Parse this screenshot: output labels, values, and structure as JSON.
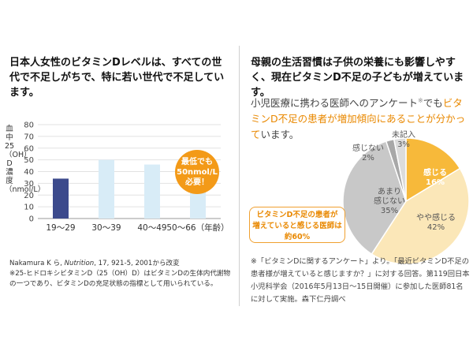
{
  "left": {
    "heading": "日本人女性のビタミンDレベルは、すべての世代で不足しがちで、特に若い世代で不足しています。",
    "ylabel": "血中25（OH）D濃度（nmol/L）",
    "callout": [
      "最低でも",
      "50nmol/L",
      "必要！"
    ],
    "source_line1_prefix": "Nakamura K ら, ",
    "source_line1_journal": "Nutrition",
    "source_line1_suffix": ", 17, 921-5, 2001から改変",
    "source_line2": "※25-ヒドロキシビタミンD（25（OH）D）はビタミンDの生体内代謝物の一つであり、ビタミンDの充足状態の指標として用いられている。"
  },
  "chart_data": [
    {
      "type": "bar",
      "categories": [
        "19〜29",
        "30〜39",
        "40〜49",
        "50〜66"
      ],
      "x_unit_suffix": "（年齢）",
      "values": [
        34,
        50,
        46,
        54
      ],
      "bar_colors": [
        "#3c4a8c",
        "#d8ecf7",
        "#d8ecf7",
        "#d8ecf7"
      ],
      "ylabel": "血中25（OH）D濃度（nmol/L）",
      "yticks": [
        0,
        10,
        20,
        30,
        40,
        50,
        60,
        70,
        80
      ],
      "ylim": [
        0,
        80
      ],
      "grid": true,
      "annotation": "最低でも50nmol/L必要！"
    },
    {
      "type": "pie",
      "slices": [
        {
          "label": "感じる",
          "value": 16,
          "color": "#f7b93a"
        },
        {
          "label": "やや感じる",
          "value": 42,
          "color": "#fbe7b8"
        },
        {
          "label": "あまり感じない",
          "value": 35,
          "color": "#c8c8c8"
        },
        {
          "label": "感じない",
          "value": 2,
          "color": "#a8a8a8"
        },
        {
          "label": "未記入",
          "value": 3,
          "color": "#dcdcdc"
        }
      ]
    }
  ],
  "right": {
    "heading": "母親の生活習慣は子供の栄養にも影響しやすく、現在ビタミンD不足の子どもが増えています。",
    "survey_a": "小児医療に携わる医師へのアンケート",
    "survey_mark": "※",
    "survey_b": "でも",
    "survey_hl": "ビタミンD不足の患者が増加傾向にあることが分かって",
    "survey_c": "います。",
    "pie_labels": {
      "kanjiru": [
        "感じる",
        "16%"
      ],
      "yaya": [
        "やや感じる",
        "42%"
      ],
      "amari": [
        "あまり",
        "感じない",
        "35%"
      ],
      "kanjinai": [
        "感じない",
        "2%"
      ],
      "mikinyu": [
        "未記入",
        "3%"
      ]
    },
    "orange_box": [
      "ビタミンD不足の患者が",
      "増えていると感じる医師は",
      "約60%"
    ],
    "footnote": "※「ビタミンDに関するアンケート」より。「最近ビタミンD不足の患者様が増えていると感じますか？」に対する回答。第119回日本小児科学会（2016年5月13日〜15日開催）に参加した医師81名に対して実施。森下仁丹調べ"
  }
}
